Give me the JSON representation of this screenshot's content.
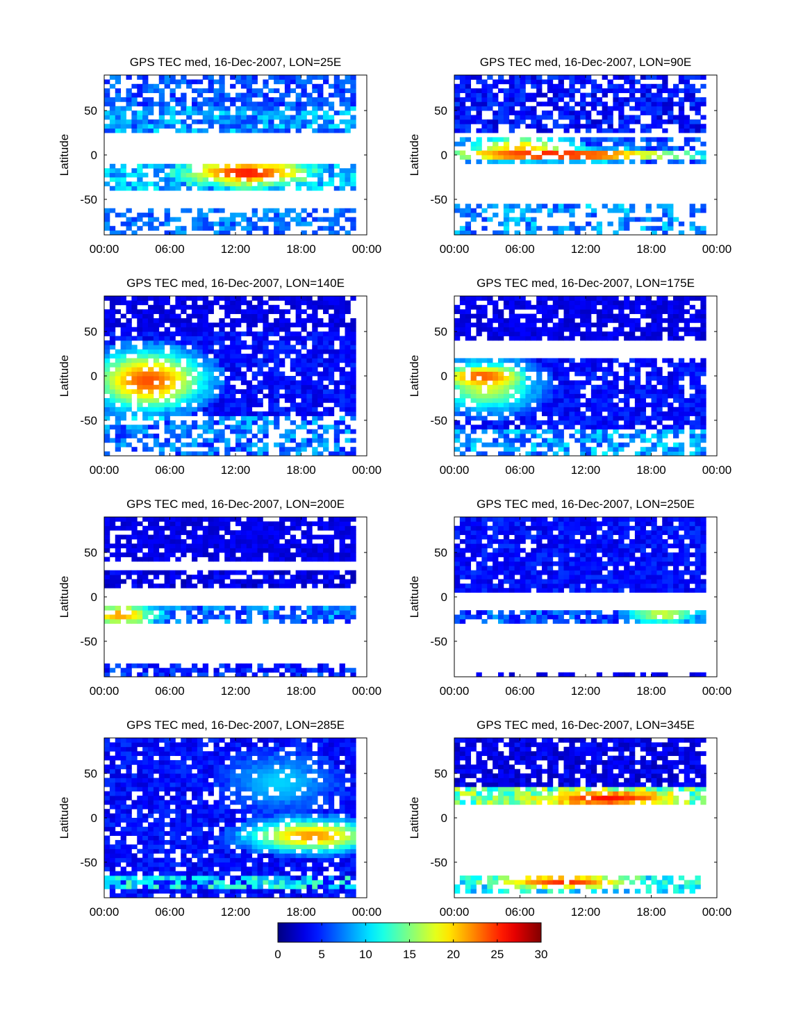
{
  "figure": {
    "colorbar": {
      "colormap": "jet",
      "range": [
        0,
        30
      ],
      "ticks": [
        "0",
        "5",
        "10",
        "15",
        "20",
        "25",
        "30"
      ]
    }
  },
  "chart_data": [
    {
      "type": "heatmap",
      "title": "GPS TEC med, 16-Dec-2007, LON=25E",
      "ylabel": "Latitude",
      "xlabel": "",
      "xticks": [
        "00:00",
        "06:00",
        "12:00",
        "18:00",
        "00:00"
      ],
      "yticks": [
        "-50",
        "0",
        "50"
      ],
      "xlim": [
        0,
        24
      ],
      "ylim": [
        -90,
        90
      ],
      "colorbar_range": [
        0,
        30
      ],
      "features": [
        {
          "kind": "band",
          "lat": [
            55,
            90
          ],
          "hours": [
            0,
            23
          ],
          "value": 6,
          "fill": 0.65,
          "jitter": 2
        },
        {
          "kind": "band",
          "lat": [
            25,
            55
          ],
          "hours": [
            0,
            23
          ],
          "value": 8,
          "fill": 0.75,
          "jitter": 3
        },
        {
          "kind": "band",
          "lat": [
            -40,
            -10
          ],
          "hours": [
            0,
            23
          ],
          "value": 9,
          "fill": 0.75,
          "jitter": 3
        },
        {
          "kind": "blob",
          "lat": -20,
          "hour": 13,
          "sigma_lat": 9,
          "sigma_hour": 3.5,
          "value": 26
        },
        {
          "kind": "band",
          "lat": [
            -90,
            -60
          ],
          "hours": [
            0,
            23
          ],
          "value": 7,
          "fill": 0.55,
          "jitter": 2
        }
      ]
    },
    {
      "type": "heatmap",
      "title": "GPS TEC med, 16-Dec-2007, LON=90E",
      "ylabel": "Latitude",
      "xlabel": "",
      "xticks": [
        "00:00",
        "06:00",
        "12:00",
        "18:00",
        "00:00"
      ],
      "yticks": [
        "-50",
        "0",
        "50"
      ],
      "xlim": [
        0,
        24
      ],
      "ylim": [
        -90,
        90
      ],
      "colorbar_range": [
        0,
        30
      ],
      "features": [
        {
          "kind": "band",
          "lat": [
            25,
            90
          ],
          "hours": [
            0,
            23
          ],
          "value": 4,
          "fill": 0.7,
          "jitter": 2
        },
        {
          "kind": "band",
          "lat": [
            -10,
            20
          ],
          "hours": [
            0,
            23
          ],
          "value": 6,
          "fill": 0.7,
          "jitter": 2
        },
        {
          "kind": "blob",
          "lat": 10,
          "hour": 6,
          "sigma_lat": 7,
          "sigma_hour": 3,
          "value": 20
        },
        {
          "kind": "blob",
          "lat": 0,
          "hour": 10,
          "sigma_lat": 4,
          "sigma_hour": 8,
          "value": 28
        },
        {
          "kind": "band",
          "lat": [
            -90,
            -55
          ],
          "hours": [
            0,
            23
          ],
          "value": 8,
          "fill": 0.45,
          "jitter": 3
        }
      ]
    },
    {
      "type": "heatmap",
      "title": "GPS TEC med, 16-Dec-2007, LON=140E",
      "ylabel": "Latitude",
      "xlabel": "",
      "xticks": [
        "00:00",
        "06:00",
        "12:00",
        "18:00",
        "00:00"
      ],
      "yticks": [
        "-50",
        "0",
        "50"
      ],
      "xlim": [
        0,
        24
      ],
      "ylim": [
        -90,
        90
      ],
      "colorbar_range": [
        0,
        30
      ],
      "features": [
        {
          "kind": "band",
          "lat": [
            50,
            90
          ],
          "hours": [
            0,
            23
          ],
          "value": 3,
          "fill": 0.75,
          "jitter": 1
        },
        {
          "kind": "band",
          "lat": [
            -45,
            50
          ],
          "hours": [
            0,
            23
          ],
          "value": 4,
          "fill": 0.85,
          "jitter": 1.5
        },
        {
          "kind": "blob",
          "lat": -5,
          "hour": 4,
          "sigma_lat": 22,
          "sigma_hour": 3.5,
          "value": 24
        },
        {
          "kind": "band",
          "lat": [
            -90,
            -45
          ],
          "hours": [
            0,
            23
          ],
          "value": 7,
          "fill": 0.6,
          "jitter": 3
        }
      ]
    },
    {
      "type": "heatmap",
      "title": "GPS TEC med, 16-Dec-2007, LON=175E",
      "ylabel": "Latitude",
      "xlabel": "",
      "xticks": [
        "00:00",
        "06:00",
        "12:00",
        "18:00",
        "00:00"
      ],
      "yticks": [
        "-50",
        "0",
        "50"
      ],
      "xlim": [
        0,
        24
      ],
      "ylim": [
        -90,
        90
      ],
      "colorbar_range": [
        0,
        30
      ],
      "features": [
        {
          "kind": "band",
          "lat": [
            40,
            90
          ],
          "hours": [
            0,
            23
          ],
          "value": 3,
          "fill": 0.8,
          "jitter": 1
        },
        {
          "kind": "band",
          "lat": [
            -60,
            20
          ],
          "hours": [
            0,
            23
          ],
          "value": 4,
          "fill": 0.85,
          "jitter": 1.5
        },
        {
          "kind": "blob",
          "lat": -10,
          "hour": 3,
          "sigma_lat": 20,
          "sigma_hour": 3,
          "value": 18
        },
        {
          "kind": "blob",
          "lat": 0,
          "hour": 2.5,
          "sigma_lat": 6,
          "sigma_hour": 2,
          "value": 24
        },
        {
          "kind": "band",
          "lat": [
            -90,
            -60
          ],
          "hours": [
            0,
            23
          ],
          "value": 8,
          "fill": 0.65,
          "jitter": 3
        }
      ]
    },
    {
      "type": "heatmap",
      "title": "GPS TEC med, 16-Dec-2007, LON=200E",
      "ylabel": "Latitude",
      "xlabel": "",
      "xticks": [
        "00:00",
        "06:00",
        "12:00",
        "18:00",
        "00:00"
      ],
      "yticks": [
        "-50",
        "0",
        "50"
      ],
      "xlim": [
        0,
        24
      ],
      "ylim": [
        -90,
        90
      ],
      "colorbar_range": [
        0,
        30
      ],
      "features": [
        {
          "kind": "band",
          "lat": [
            40,
            90
          ],
          "hours": [
            0,
            23
          ],
          "value": 3,
          "fill": 0.85,
          "jitter": 1
        },
        {
          "kind": "band",
          "lat": [
            10,
            30
          ],
          "hours": [
            0,
            23
          ],
          "value": 3,
          "fill": 0.8,
          "jitter": 1.5
        },
        {
          "kind": "band",
          "lat": [
            -30,
            -10
          ],
          "hours": [
            0,
            23
          ],
          "value": 7,
          "fill": 0.75,
          "jitter": 3
        },
        {
          "kind": "blob",
          "lat": -20,
          "hour": 1.5,
          "sigma_lat": 8,
          "sigma_hour": 2,
          "value": 22
        },
        {
          "kind": "band",
          "lat": [
            -90,
            -75
          ],
          "hours": [
            0,
            23
          ],
          "value": 5,
          "fill": 0.65,
          "jitter": 2
        }
      ]
    },
    {
      "type": "heatmap",
      "title": "GPS TEC med, 16-Dec-2007, LON=250E",
      "ylabel": "Latitude",
      "xlabel": "",
      "xticks": [
        "00:00",
        "06:00",
        "12:00",
        "18:00",
        "00:00"
      ],
      "yticks": [
        "-50",
        "0",
        "50"
      ],
      "xlim": [
        0,
        24
      ],
      "ylim": [
        -90,
        90
      ],
      "colorbar_range": [
        0,
        30
      ],
      "features": [
        {
          "kind": "band",
          "lat": [
            5,
            90
          ],
          "hours": [
            0,
            23
          ],
          "value": 4,
          "fill": 0.9,
          "jitter": 1.5
        },
        {
          "kind": "band",
          "lat": [
            -30,
            -15
          ],
          "hours": [
            0,
            23
          ],
          "value": 6,
          "fill": 0.75,
          "jitter": 3
        },
        {
          "kind": "blob",
          "lat": -20,
          "hour": 19,
          "sigma_lat": 6,
          "sigma_hour": 2,
          "value": 18
        },
        {
          "kind": "band",
          "lat": [
            -90,
            -85
          ],
          "hours": [
            0,
            23
          ],
          "value": 3,
          "fill": 0.5,
          "jitter": 1
        }
      ]
    },
    {
      "type": "heatmap",
      "title": "GPS TEC med, 16-Dec-2007, LON=285E",
      "ylabel": "Latitude",
      "xlabel": "",
      "xticks": [
        "00:00",
        "06:00",
        "12:00",
        "18:00",
        "00:00"
      ],
      "yticks": [
        "-50",
        "0",
        "50"
      ],
      "xlim": [
        0,
        24
      ],
      "ylim": [
        -90,
        90
      ],
      "colorbar_range": [
        0,
        30
      ],
      "features": [
        {
          "kind": "band",
          "lat": [
            -90,
            90
          ],
          "hours": [
            0,
            23
          ],
          "value": 4,
          "fill": 0.85,
          "jitter": 1.5
        },
        {
          "kind": "blob",
          "lat": 40,
          "hour": 16,
          "sigma_lat": 20,
          "sigma_hour": 3,
          "value": 10
        },
        {
          "kind": "blob",
          "lat": -20,
          "hour": 19,
          "sigma_lat": 12,
          "sigma_hour": 4,
          "value": 22
        },
        {
          "kind": "band",
          "lat": [
            -80,
            -65
          ],
          "hours": [
            0,
            23
          ],
          "value": 11,
          "fill": 0.7,
          "jitter": 3
        }
      ]
    },
    {
      "type": "heatmap",
      "title": "GPS TEC med, 16-Dec-2007, LON=345E",
      "ylabel": "Latitude",
      "xlabel": "",
      "xticks": [
        "00:00",
        "06:00",
        "12:00",
        "18:00",
        "00:00"
      ],
      "yticks": [
        "-50",
        "0",
        "50"
      ],
      "xlim": [
        0,
        24
      ],
      "ylim": [
        -90,
        90
      ],
      "colorbar_range": [
        0,
        30
      ],
      "features": [
        {
          "kind": "band",
          "lat": [
            35,
            90
          ],
          "hours": [
            0,
            23
          ],
          "value": 3,
          "fill": 0.8,
          "jitter": 1.5
        },
        {
          "kind": "band",
          "lat": [
            15,
            35
          ],
          "hours": [
            0,
            23
          ],
          "value": 14,
          "fill": 0.85,
          "jitter": 4
        },
        {
          "kind": "blob",
          "lat": 22,
          "hour": 14,
          "sigma_lat": 6,
          "sigma_hour": 4,
          "value": 26
        },
        {
          "kind": "band",
          "lat": [
            -85,
            -65
          ],
          "hours": [
            0,
            23
          ],
          "value": 11,
          "fill": 0.6,
          "jitter": 3
        },
        {
          "kind": "blob",
          "lat": -72,
          "hour": 10,
          "sigma_lat": 5,
          "sigma_hour": 4,
          "value": 25
        }
      ]
    }
  ]
}
